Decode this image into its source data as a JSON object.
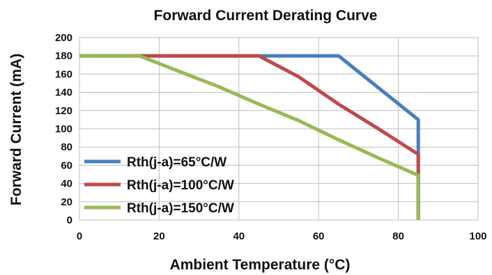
{
  "chart_data": {
    "type": "line",
    "title": "Forward Current Derating Curve",
    "xlabel": "Ambient Temperature (°C)",
    "ylabel": "Forward Current (mA)",
    "xlim": [
      0,
      100
    ],
    "ylim": [
      0,
      200
    ],
    "xticks": [
      0,
      20,
      40,
      60,
      80,
      100
    ],
    "yticks": [
      0,
      20,
      40,
      60,
      80,
      100,
      120,
      140,
      160,
      180,
      200
    ],
    "grid": true,
    "legend_position": "lower-left",
    "series": [
      {
        "name": "Rth(j-a)=65°C/W",
        "color": "#4a7ebb",
        "points": [
          [
            0,
            180
          ],
          [
            65,
            180
          ],
          [
            75,
            145
          ],
          [
            85,
            110
          ],
          [
            85,
            0
          ]
        ]
      },
      {
        "name": "Rth(j-a)=100°C/W",
        "color": "#be4b48",
        "points": [
          [
            0,
            180
          ],
          [
            45,
            180
          ],
          [
            55,
            157
          ],
          [
            65,
            127
          ],
          [
            75,
            100
          ],
          [
            85,
            72
          ],
          [
            85,
            0
          ]
        ]
      },
      {
        "name": "Rth(j-a)=150°C/W",
        "color": "#98b954",
        "points": [
          [
            0,
            180
          ],
          [
            15,
            180
          ],
          [
            25,
            163
          ],
          [
            35,
            146
          ],
          [
            45,
            127
          ],
          [
            55,
            109
          ],
          [
            65,
            88
          ],
          [
            75,
            68
          ],
          [
            85,
            49
          ],
          [
            85,
            0
          ]
        ]
      }
    ]
  }
}
